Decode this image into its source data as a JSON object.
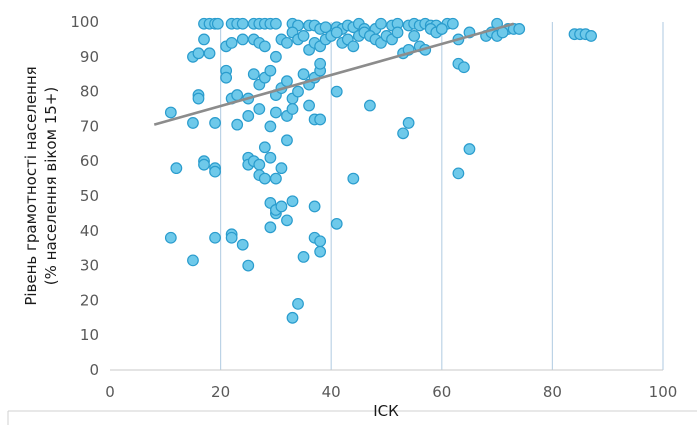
{
  "chart_data": {
    "type": "scatter",
    "xlabel": "ІСК",
    "ylabel": "Рівень грамотності населення",
    "ylabel2": "(% населення віком 15+)",
    "xlim": [
      0,
      100
    ],
    "ylim": [
      0,
      100
    ],
    "x_ticks": [
      "0",
      "20",
      "40",
      "60",
      "80",
      "100"
    ],
    "y_ticks": [
      "0",
      "10",
      "20",
      "30",
      "40",
      "50",
      "60",
      "70",
      "80",
      "90",
      "100"
    ],
    "grid": "vertical",
    "point_color": "#6ec9ea",
    "point_edge_color": "#2a9ccd",
    "trend_color": "#8c8c8c",
    "trendline": {
      "x": [
        8,
        73
      ],
      "y": [
        70.5,
        99.5
      ]
    },
    "points": [
      [
        17,
        99.5
      ],
      [
        18,
        99.5
      ],
      [
        19,
        99.5
      ],
      [
        19.5,
        99.5
      ],
      [
        22,
        99.5
      ],
      [
        23,
        99.5
      ],
      [
        24,
        99.5
      ],
      [
        26,
        99.5
      ],
      [
        27,
        99.5
      ],
      [
        28,
        99.5
      ],
      [
        29,
        99.5
      ],
      [
        30,
        99.5
      ],
      [
        33,
        99.5
      ],
      [
        34,
        99
      ],
      [
        36,
        99
      ],
      [
        37,
        99
      ],
      [
        38,
        98
      ],
      [
        39,
        98.5
      ],
      [
        41,
        98.5
      ],
      [
        42,
        98
      ],
      [
        43,
        99
      ],
      [
        44,
        98.5
      ],
      [
        45,
        99.5
      ],
      [
        46,
        98
      ],
      [
        48,
        98
      ],
      [
        49,
        99.5
      ],
      [
        51,
        99
      ],
      [
        52,
        99.5
      ],
      [
        54,
        99
      ],
      [
        55,
        99.5
      ],
      [
        56,
        99
      ],
      [
        57,
        99.5
      ],
      [
        58,
        99
      ],
      [
        59,
        99
      ],
      [
        60,
        98
      ],
      [
        61,
        99.5
      ],
      [
        62,
        99.5
      ],
      [
        70,
        99.5
      ],
      [
        72,
        98
      ],
      [
        73,
        98
      ],
      [
        74,
        98
      ],
      [
        84,
        96.5
      ],
      [
        85,
        96.5
      ],
      [
        86,
        96.5
      ],
      [
        87,
        96
      ],
      [
        15,
        90
      ],
      [
        16,
        91
      ],
      [
        17,
        95
      ],
      [
        18,
        91
      ],
      [
        21,
        93
      ],
      [
        22,
        94
      ],
      [
        24,
        95
      ],
      [
        26,
        95
      ],
      [
        27,
        94
      ],
      [
        28,
        93
      ],
      [
        30,
        90
      ],
      [
        31,
        95
      ],
      [
        32,
        94
      ],
      [
        33,
        97
      ],
      [
        34,
        95
      ],
      [
        35,
        96
      ],
      [
        36,
        92
      ],
      [
        37,
        94
      ],
      [
        38,
        93
      ],
      [
        39,
        95
      ],
      [
        40,
        96
      ],
      [
        41,
        97
      ],
      [
        42,
        94
      ],
      [
        43,
        95
      ],
      [
        44,
        93
      ],
      [
        45,
        96
      ],
      [
        46,
        97
      ],
      [
        47,
        96
      ],
      [
        48,
        95
      ],
      [
        49,
        94
      ],
      [
        50,
        96
      ],
      [
        51,
        95
      ],
      [
        52,
        97
      ],
      [
        53,
        91
      ],
      [
        54,
        92
      ],
      [
        55,
        96
      ],
      [
        56,
        93
      ],
      [
        57,
        92
      ],
      [
        58,
        98
      ],
      [
        59,
        97
      ],
      [
        60,
        98
      ],
      [
        63,
        95
      ],
      [
        65,
        97
      ],
      [
        68,
        96
      ],
      [
        69,
        97
      ],
      [
        70,
        96
      ],
      [
        71,
        97
      ],
      [
        16,
        79
      ],
      [
        16,
        78
      ],
      [
        21,
        86
      ],
      [
        21,
        84
      ],
      [
        22,
        78
      ],
      [
        23,
        79
      ],
      [
        25,
        78
      ],
      [
        26,
        85
      ],
      [
        27,
        82
      ],
      [
        28,
        84
      ],
      [
        29,
        86
      ],
      [
        30,
        79
      ],
      [
        31,
        81
      ],
      [
        32,
        83
      ],
      [
        33,
        78
      ],
      [
        34,
        80
      ],
      [
        35,
        85
      ],
      [
        36,
        82
      ],
      [
        37,
        84
      ],
      [
        38,
        86
      ],
      [
        38,
        88
      ],
      [
        41,
        80
      ],
      [
        47,
        76
      ],
      [
        63,
        88
      ],
      [
        64,
        87
      ],
      [
        11,
        74
      ],
      [
        15,
        71
      ],
      [
        19,
        71
      ],
      [
        23,
        70.5
      ],
      [
        25,
        73
      ],
      [
        27,
        75
      ],
      [
        29,
        70
      ],
      [
        30,
        74
      ],
      [
        32,
        73
      ],
      [
        33,
        75
      ],
      [
        36,
        76
      ],
      [
        37,
        72
      ],
      [
        38,
        72
      ],
      [
        53,
        68
      ],
      [
        54,
        71
      ],
      [
        12,
        58
      ],
      [
        17,
        60
      ],
      [
        17,
        59
      ],
      [
        19,
        58
      ],
      [
        19,
        57
      ],
      [
        25,
        61
      ],
      [
        25,
        59
      ],
      [
        26,
        60
      ],
      [
        27,
        59
      ],
      [
        27,
        56
      ],
      [
        28,
        64
      ],
      [
        28,
        55
      ],
      [
        29,
        61
      ],
      [
        30,
        55
      ],
      [
        31,
        58
      ],
      [
        32,
        66
      ],
      [
        44,
        55
      ],
      [
        63,
        56.5
      ],
      [
        65,
        63.5
      ],
      [
        11,
        38
      ],
      [
        15,
        31.5
      ],
      [
        19,
        38
      ],
      [
        22,
        39
      ],
      [
        22,
        38
      ],
      [
        24,
        36
      ],
      [
        25,
        30
      ],
      [
        29,
        48
      ],
      [
        29,
        41
      ],
      [
        30,
        45
      ],
      [
        30,
        46
      ],
      [
        31,
        47
      ],
      [
        32,
        43
      ],
      [
        33,
        48.5
      ],
      [
        35,
        32.5
      ],
      [
        37,
        38
      ],
      [
        37,
        47
      ],
      [
        38,
        34
      ],
      [
        38,
        37
      ],
      [
        41,
        42
      ],
      [
        34,
        19
      ],
      [
        33,
        15
      ]
    ]
  }
}
